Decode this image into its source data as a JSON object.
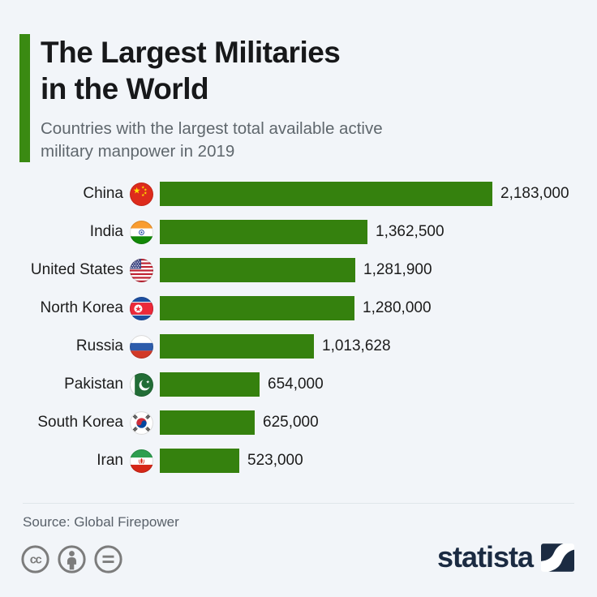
{
  "header": {
    "title_lines": [
      "The Largest Militaries",
      "in the World"
    ],
    "subtitle_lines": [
      "Countries with the largest total available active",
      "military manpower in 2019"
    ]
  },
  "chart_data": {
    "type": "bar",
    "orientation": "horizontal",
    "title": "The Largest Militaries in the World",
    "subtitle": "Countries with the largest total available active military manpower in 2019",
    "categories": [
      "China",
      "India",
      "United States",
      "North Korea",
      "Russia",
      "Pakistan",
      "South Korea",
      "Iran"
    ],
    "values": [
      2183000,
      1362500,
      1281900,
      1280000,
      1013628,
      654000,
      625000,
      523000
    ],
    "value_labels": [
      "2,183,000",
      "1,362,500",
      "1,281,900",
      "1,280,000",
      "1,013,628",
      "654,000",
      "625,000",
      "523,000"
    ],
    "flag_icons": [
      "china-flag-icon",
      "india-flag-icon",
      "united-states-flag-icon",
      "north-korea-flag-icon",
      "russia-flag-icon",
      "pakistan-flag-icon",
      "south-korea-flag-icon",
      "iran-flag-icon"
    ],
    "bar_color": "#35810e",
    "xlim": [
      0,
      2183000
    ],
    "grid": false,
    "legend": "none"
  },
  "footer": {
    "source": "Source: Global Firepower",
    "license_icons": [
      "cc-icon",
      "attribution-person-icon",
      "equals-icon"
    ],
    "brand_text": "statista"
  },
  "colors": {
    "background": "#f2f5f9",
    "accent_green": "#3a8a12",
    "bar_green": "#35810e",
    "brand_navy": "#1b2b42"
  }
}
